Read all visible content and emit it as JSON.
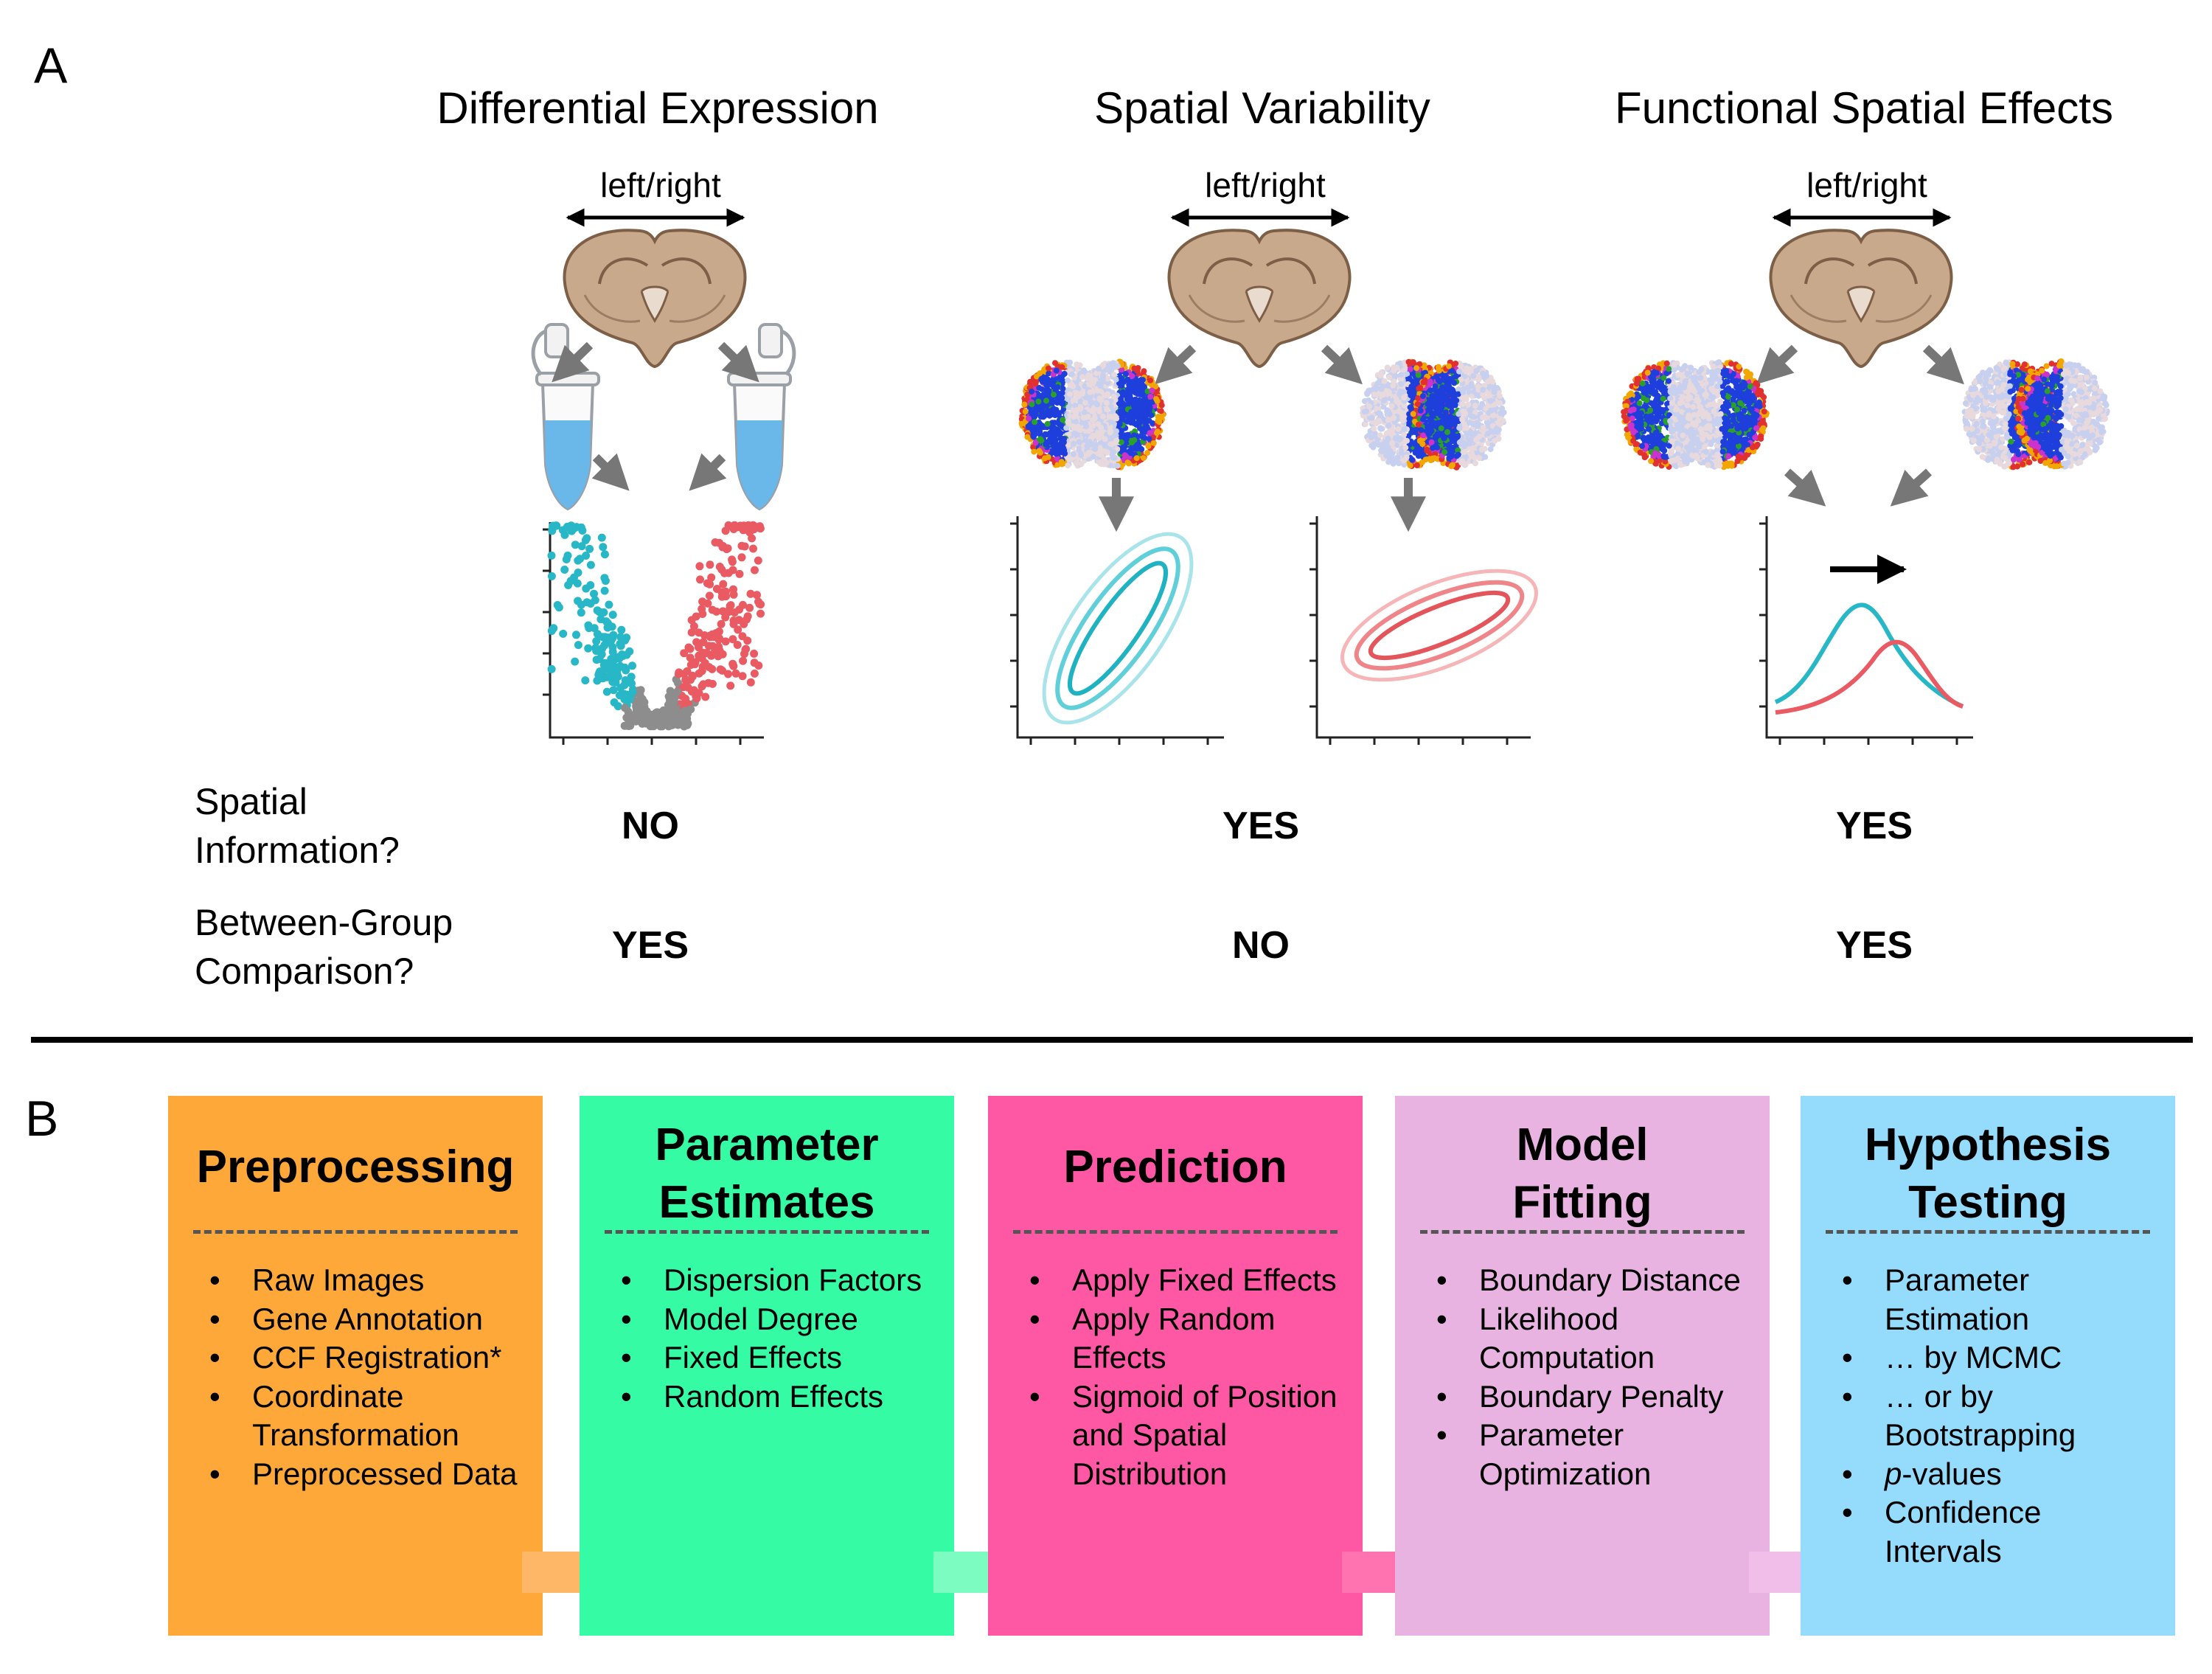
{
  "panel_a": {
    "label": "A",
    "columns": [
      {
        "title": "Differential Expression",
        "lr_label": "left/right",
        "spatial_answer": "NO",
        "between_answer": "YES"
      },
      {
        "title": "Spatial Variability",
        "lr_label": "left/right",
        "spatial_answer": "YES",
        "between_answer": "NO"
      },
      {
        "title": "Functional Spatial Effects",
        "lr_label": "left/right",
        "spatial_answer": "YES",
        "between_answer": "YES"
      }
    ],
    "row_labels": {
      "spatial": [
        "Spatial",
        "Information?"
      ],
      "between": [
        "Between-Group",
        "Comparison?"
      ]
    }
  },
  "panel_b": {
    "label": "B",
    "boxes": [
      {
        "title": [
          "Preprocessing"
        ],
        "color": "#fda838",
        "arrow_color": "#fdb766",
        "items": [
          "Raw Images",
          "Gene Annotation",
          "CCF Registration*",
          "Coordinate Transformation",
          "Preprocessed Data"
        ]
      },
      {
        "title": [
          "Parameter",
          "Estimates"
        ],
        "color": "#35fba5",
        "arrow_color": "#7cfcc0",
        "items": [
          "Dispersion Factors",
          "Model Degree",
          "Fixed Effects",
          "Random Effects"
        ]
      },
      {
        "title": [
          "Prediction"
        ],
        "color": "#fe57a3",
        "arrow_color": "#fe73b0",
        "items": [
          "Apply Fixed Effects",
          "Apply Random Effects",
          "Sigmoid of Position and Spatial Distribution"
        ]
      },
      {
        "title": [
          "Model",
          "Fitting"
        ],
        "color": "#e8b2e1",
        "arrow_color": "#f1bde9",
        "items": [
          "Boundary Distance",
          "Likelihood Computation",
          "Boundary Penalty",
          "Parameter Optimization"
        ]
      },
      {
        "title": [
          "Hypothesis",
          "Testing"
        ],
        "color": "#94dbfc",
        "items": [
          "Parameter Estimation",
          "… by MCMC",
          "… or by Bootstrapping",
          "p-values",
          "Confidence Intervals"
        ]
      }
    ]
  },
  "colors": {
    "teal": "#27b7c7",
    "red": "#ea5a62",
    "grey": "#8d8d8d",
    "brain": "#c9a98b",
    "arrow": "#777777"
  },
  "icons": [
    "brain-section-icon",
    "eppendorf-tube-icon",
    "volcano-plot-icon",
    "ellipse-contour-icon",
    "density-curve-icon"
  ]
}
